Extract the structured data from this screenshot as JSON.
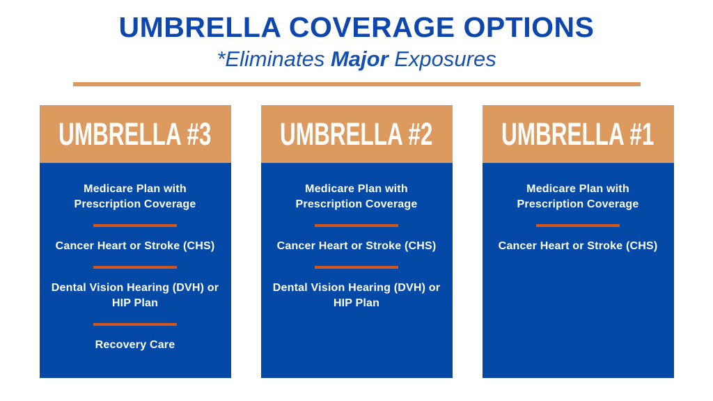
{
  "header": {
    "title": "UMBRELLA COVERAGE OPTIONS",
    "subtitle": {
      "prefix": "*Eliminates ",
      "emphasis": "Major",
      "suffix": " Exposures"
    }
  },
  "columns": [
    {
      "title": "UMBRELLA #3",
      "items": [
        "Medicare Plan with\nPrescription Coverage",
        "Cancer Heart or Stroke (CHS)",
        "Dental Vision Hearing (DVH) or\nHIP Plan",
        "Recovery Care"
      ]
    },
    {
      "title": "UMBRELLA #2",
      "items": [
        "Medicare Plan with\nPrescription Coverage",
        "Cancer Heart or Stroke (CHS)",
        "Dental Vision Hearing (DVH) or\nHIP Plan"
      ]
    },
    {
      "title": "UMBRELLA #1",
      "items": [
        "Medicare Plan with\nPrescription Coverage",
        "Cancer Heart or Stroke (CHS)"
      ]
    }
  ],
  "colors": {
    "title_blue": "#0D47AE",
    "subtitle_blue": "#1350B2",
    "card_body_blue": "#0349A5",
    "card_header_tan": "#DC9A5F",
    "header_rule_tan": "#DC9A5F",
    "divider_orange": "#D4581E",
    "card_text_white": "#FFFFFF",
    "page_background": "#FFFFFF"
  }
}
